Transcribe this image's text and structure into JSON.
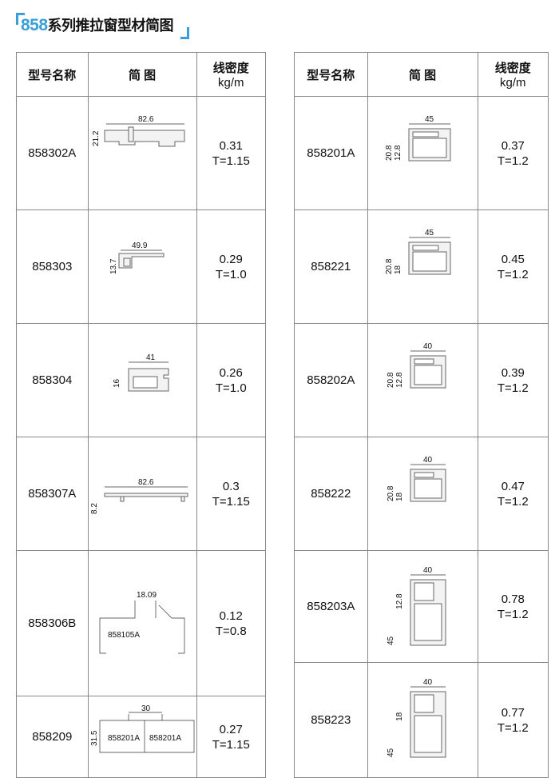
{
  "title": {
    "series": "858",
    "rest": "系列推拉窗型材简图"
  },
  "headers": {
    "model": "型号名称",
    "diagram": "简 图",
    "density": "线密度",
    "unit": "kg/m"
  },
  "left": [
    {
      "model": "858302A",
      "dims": [
        "82.6",
        "21.2"
      ],
      "density": "0.31",
      "t": "T=1.15"
    },
    {
      "model": "858303",
      "dims": [
        "49.9",
        "13.7"
      ],
      "density": "0.29",
      "t": "T=1.0"
    },
    {
      "model": "858304",
      "dims": [
        "41",
        "16"
      ],
      "density": "0.26",
      "t": "T=1.0"
    },
    {
      "model": "858307A",
      "dims": [
        "82.6",
        "8.2"
      ],
      "density": "0.3",
      "t": "T=1.15"
    },
    {
      "model": "858306B",
      "dims": [
        "18.09",
        "858105A"
      ],
      "density": "0.12",
      "t": "T=0.8"
    },
    {
      "model": "858209",
      "dims": [
        "30",
        "31.5",
        "858201A",
        "858201A"
      ],
      "density": "0.27",
      "t": "T=1.15"
    }
  ],
  "right": [
    {
      "model": "858201A",
      "dims": [
        "45",
        "20.8",
        "12.8"
      ],
      "density": "0.37",
      "t": "T=1.2"
    },
    {
      "model": "858221",
      "dims": [
        "45",
        "20.8",
        "18"
      ],
      "density": "0.45",
      "t": "T=1.2"
    },
    {
      "model": "858202A",
      "dims": [
        "40",
        "20.8",
        "12.8"
      ],
      "density": "0.39",
      "t": "T=1.2"
    },
    {
      "model": "858222",
      "dims": [
        "40",
        "20.8",
        "18"
      ],
      "density": "0.47",
      "t": "T=1.2"
    },
    {
      "model": "858203A",
      "dims": [
        "40",
        "45",
        "12.8"
      ],
      "density": "0.78",
      "t": "T=1.2"
    },
    {
      "model": "858223",
      "dims": [
        "40",
        "45",
        "18"
      ],
      "density": "0.77",
      "t": "T=1.2"
    }
  ]
}
